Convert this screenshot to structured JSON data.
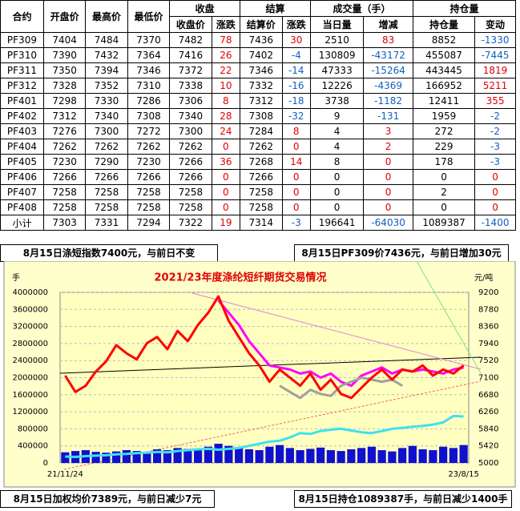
{
  "table": {
    "header_top": [
      "合约",
      "开盘价",
      "最高价",
      "最低价",
      "收盘",
      "结算",
      "成交量（手）",
      "持仓量"
    ],
    "header_sub": [
      "收盘价",
      "涨跌",
      "结算价",
      "涨跌",
      "当日量",
      "增减",
      "持仓量",
      "变动"
    ],
    "rows": [
      [
        "PF309",
        7404,
        7484,
        7370,
        7482,
        78,
        7436,
        30,
        2510,
        83,
        8852,
        -1330
      ],
      [
        "PF310",
        7390,
        7432,
        7364,
        7416,
        26,
        7402,
        -4,
        130809,
        -43172,
        455087,
        -7445
      ],
      [
        "PF311",
        7350,
        7394,
        7346,
        7372,
        22,
        7346,
        -14,
        47333,
        -15264,
        443445,
        1819
      ],
      [
        "PF312",
        7328,
        7352,
        7310,
        7338,
        10,
        7332,
        -16,
        12226,
        -4369,
        166952,
        5211
      ],
      [
        "PF401",
        7298,
        7330,
        7286,
        7306,
        8,
        7312,
        -18,
        3738,
        -1182,
        12411,
        355
      ],
      [
        "PF402",
        7312,
        7340,
        7308,
        7340,
        28,
        7308,
        -32,
        9,
        -131,
        1959,
        -2
      ],
      [
        "PF403",
        7276,
        7300,
        7272,
        7300,
        24,
        7284,
        8,
        4,
        3,
        272,
        -2
      ],
      [
        "PF404",
        7262,
        7262,
        7262,
        7262,
        0,
        7262,
        0,
        4,
        2,
        229,
        -3
      ],
      [
        "PF405",
        7230,
        7290,
        7230,
        7266,
        36,
        7268,
        14,
        8,
        0,
        178,
        -3
      ],
      [
        "PF406",
        7266,
        7266,
        7266,
        7266,
        0,
        7266,
        0,
        0,
        0,
        0,
        0
      ],
      [
        "PF407",
        7258,
        7258,
        7258,
        7258,
        0,
        7258,
        0,
        0,
        0,
        2,
        0
      ],
      [
        "PF408",
        7258,
        7258,
        7258,
        7258,
        0,
        7258,
        0,
        0,
        0,
        0,
        0
      ],
      [
        "小计",
        7303,
        7331,
        7294,
        7322,
        19,
        7314,
        -3,
        196641,
        -64030,
        1089387,
        -1400
      ]
    ]
  },
  "banners": {
    "top_left": "8月15日涤短指数7400元，与前日不变",
    "top_right": "8月15日PF309价7436元，与前日增加30元",
    "bottom_left": "8月15日加权均价7389元，与前日减少7元",
    "bottom_right": "8月15日持仓1089387手，与前日减少1400手"
  },
  "chart_data": {
    "type": "line",
    "title": "2021/23年度涤纶短纤期货交易情况",
    "y_label": "手",
    "y2_label": "元/吨",
    "categories": [
      "21/11/24",
      null,
      null,
      null,
      null,
      null,
      null,
      null,
      null,
      null,
      null,
      null,
      null,
      null,
      null,
      null,
      null,
      null,
      null,
      null,
      null,
      null,
      null,
      null,
      null,
      null,
      null,
      null,
      null,
      null,
      null,
      null,
      null,
      null,
      null,
      null,
      null,
      null,
      null,
      "23/8/15"
    ],
    "ylim": [
      0,
      4000000
    ],
    "yticks": [
      0,
      400000,
      800000,
      1200000,
      1600000,
      2000000,
      2400000,
      2800000,
      3200000,
      3600000,
      4000000
    ],
    "y2lim": [
      5000,
      9200
    ],
    "y2ticks": [
      5000,
      5420,
      5840,
      6260,
      6680,
      7100,
      7520,
      7940,
      8360,
      8780,
      9200
    ],
    "grid": true,
    "series": [
      {
        "kind": "bar",
        "color": "#1010d0",
        "values": [
          250000,
          280000,
          300000,
          260000,
          240000,
          270000,
          300000,
          280000,
          260000,
          320000,
          300000,
          350000,
          330000,
          300000,
          380000,
          450000,
          400000,
          350000,
          320000,
          300000,
          380000,
          420000,
          350000,
          300000,
          330000,
          360000,
          300000,
          280000,
          320000,
          350000,
          380000,
          300000,
          270000,
          350000,
          400000,
          320000,
          300000,
          380000,
          350000,
          420000
        ]
      },
      {
        "kind": "line",
        "color": "#40e0f0",
        "values": [
          150000,
          140000,
          160000,
          170000,
          180000,
          200000,
          210000,
          230000,
          240000,
          260000,
          250000,
          280000,
          300000,
          320000,
          330000,
          310000,
          330000,
          350000,
          400000,
          450000,
          500000,
          520000,
          600000,
          700000,
          680000,
          750000,
          780000,
          800000,
          760000,
          720000,
          700000,
          750000,
          800000,
          820000,
          850000,
          870000,
          900000,
          950000,
          1100000,
          1089387
        ]
      },
      {
        "kind": "line",
        "axis": "y2",
        "color": "#ff00ff",
        "values": [
          null,
          null,
          null,
          null,
          null,
          null,
          null,
          null,
          null,
          null,
          null,
          null,
          null,
          null,
          null,
          9000,
          8700,
          8400,
          8000,
          7700,
          7400,
          7350,
          7300,
          7200,
          7250,
          7100,
          7200,
          7000,
          6900,
          7150,
          7250,
          7350,
          7200,
          7300,
          7250,
          7300,
          7250,
          7200,
          7300,
          7350
        ]
      },
      {
        "kind": "line",
        "axis": "y2",
        "color": "#a0a0a0",
        "values": [
          null,
          null,
          null,
          null,
          null,
          null,
          null,
          null,
          null,
          null,
          null,
          null,
          null,
          null,
          null,
          null,
          null,
          null,
          null,
          null,
          null,
          6900,
          6750,
          6600,
          6800,
          6700,
          6650,
          6900,
          7000,
          7100,
          7050,
          7000,
          7050,
          6900,
          null,
          null,
          null,
          null,
          null,
          null
        ]
      },
      {
        "kind": "line",
        "axis": "y2",
        "color": "#ff0000",
        "values": [
          7150,
          6750,
          6900,
          7250,
          7500,
          7900,
          7700,
          7550,
          7950,
          8100,
          7800,
          8250,
          8000,
          8400,
          8700,
          9100,
          8500,
          8100,
          7700,
          7400,
          7000,
          7300,
          7100,
          6900,
          7200,
          6800,
          7050,
          6700,
          6600,
          6850,
          7100,
          7300,
          7050,
          7300,
          7250,
          7400,
          7150,
          7300,
          7200,
          7400
        ]
      }
    ]
  }
}
